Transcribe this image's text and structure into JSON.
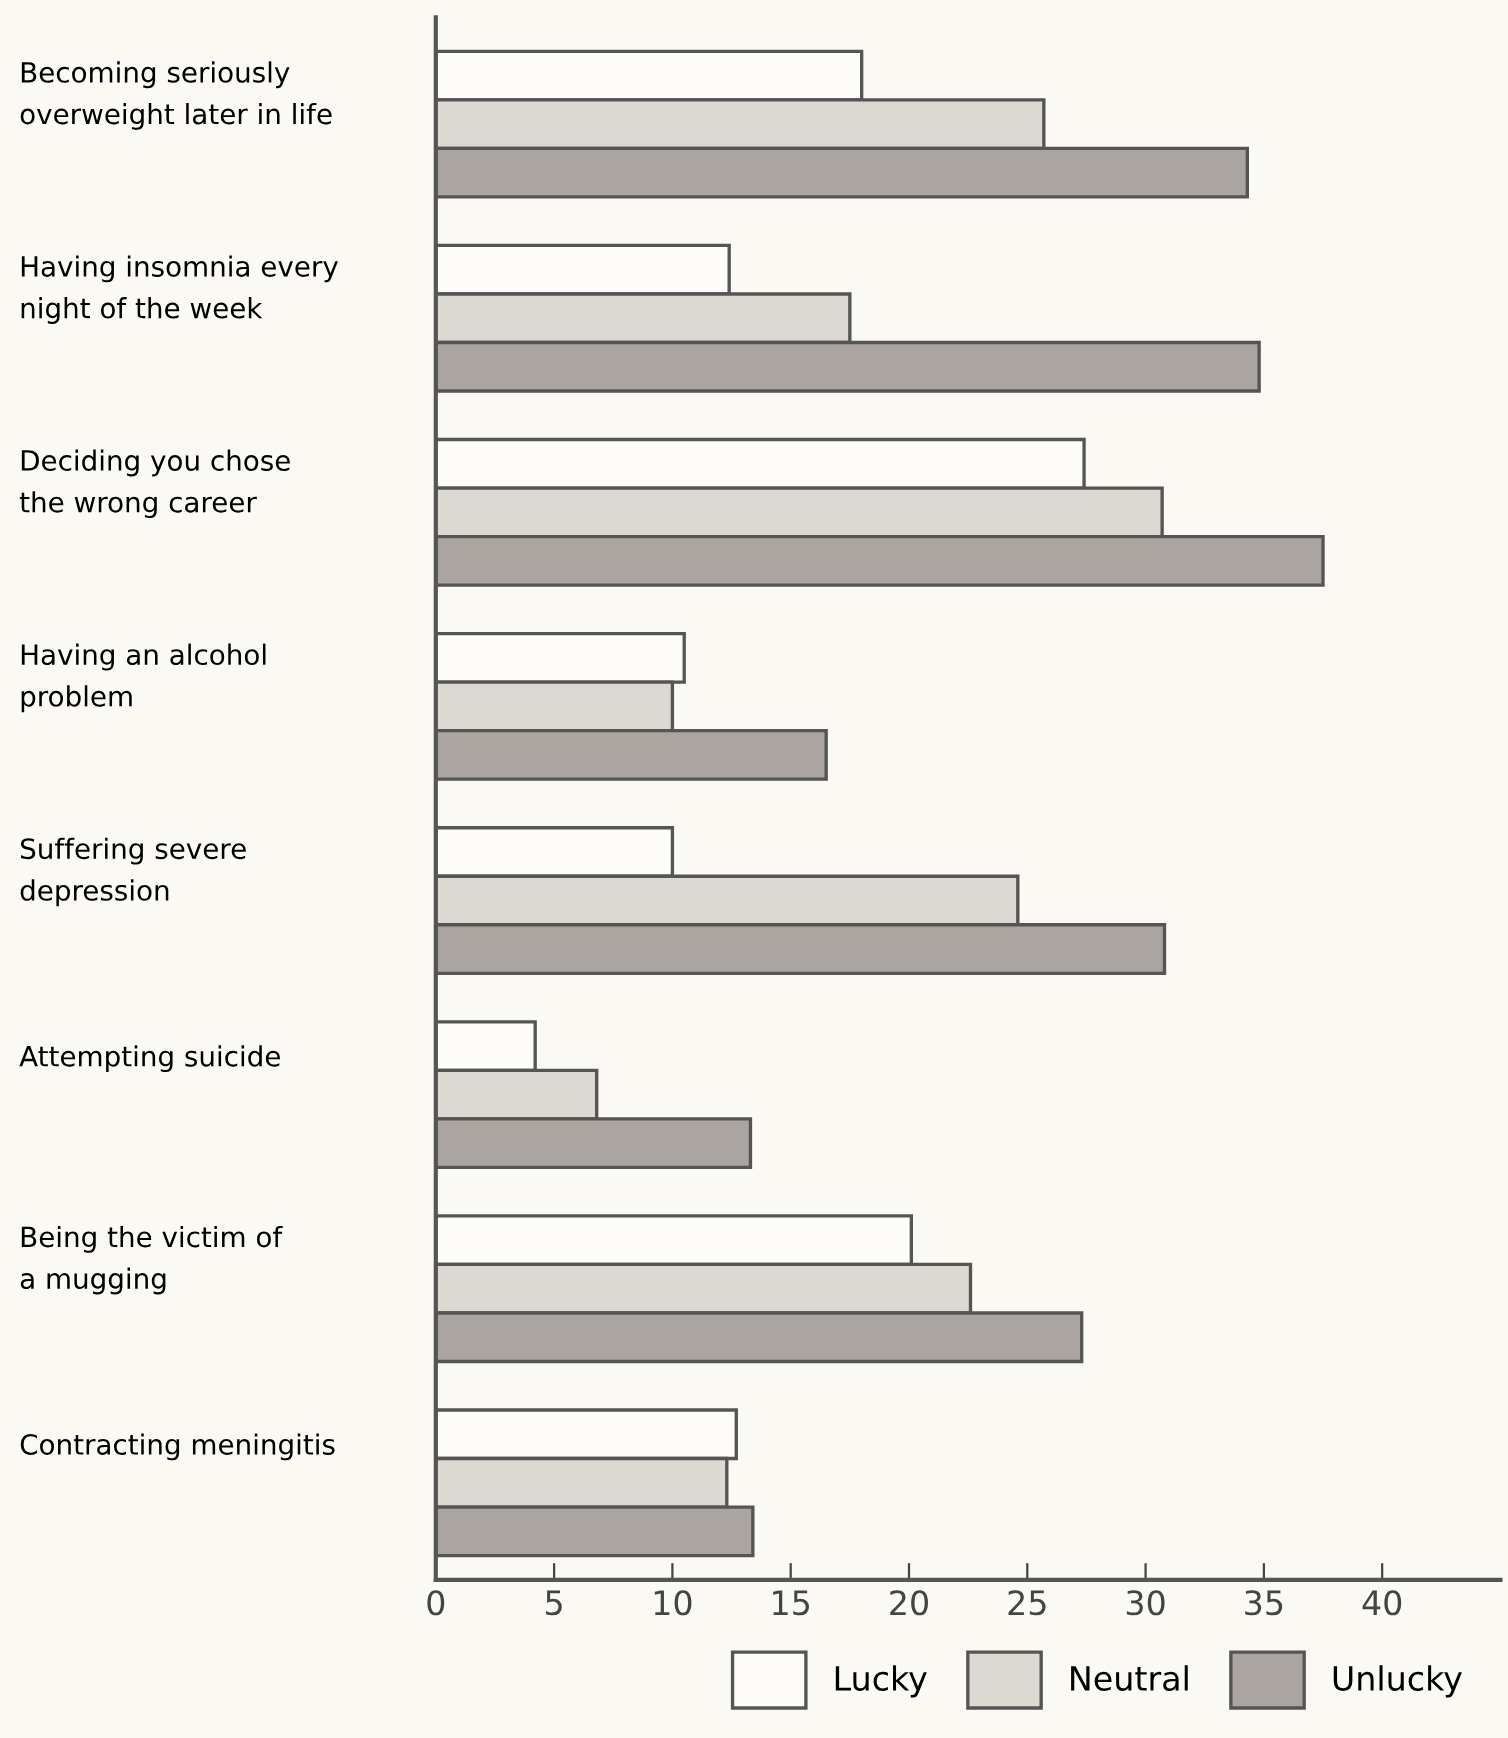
{
  "chart_data": {
    "type": "bar",
    "orientation": "horizontal",
    "categories": [
      "Becoming seriously\noverweight later in life",
      "Having insomnia every\nnight of the week",
      "Deciding you chose\nthe wrong career",
      "Having an alcohol\nproblem",
      "Suffering severe\ndepression",
      "Attempting suicide",
      "Being the victim of\na mugging",
      "Contracting meningitis"
    ],
    "series": [
      {
        "name": "Lucky",
        "color": "#fdfcf8",
        "values": [
          18.0,
          12.4,
          27.4,
          10.5,
          10.0,
          4.2,
          20.1,
          12.7
        ]
      },
      {
        "name": "Neutral",
        "color": "#dcd8d2",
        "values": [
          25.7,
          17.5,
          30.7,
          10.0,
          24.6,
          6.8,
          22.6,
          12.3
        ]
      },
      {
        "name": "Unlucky",
        "color": "#aaa5a0",
        "values": [
          34.3,
          34.8,
          37.5,
          16.5,
          30.8,
          13.3,
          27.3,
          13.4
        ]
      }
    ],
    "xlim": [
      0,
      45
    ],
    "xticks": [
      0,
      5,
      10,
      15,
      20,
      25,
      30,
      35,
      40
    ],
    "grid": false,
    "legend": "bottom right"
  }
}
